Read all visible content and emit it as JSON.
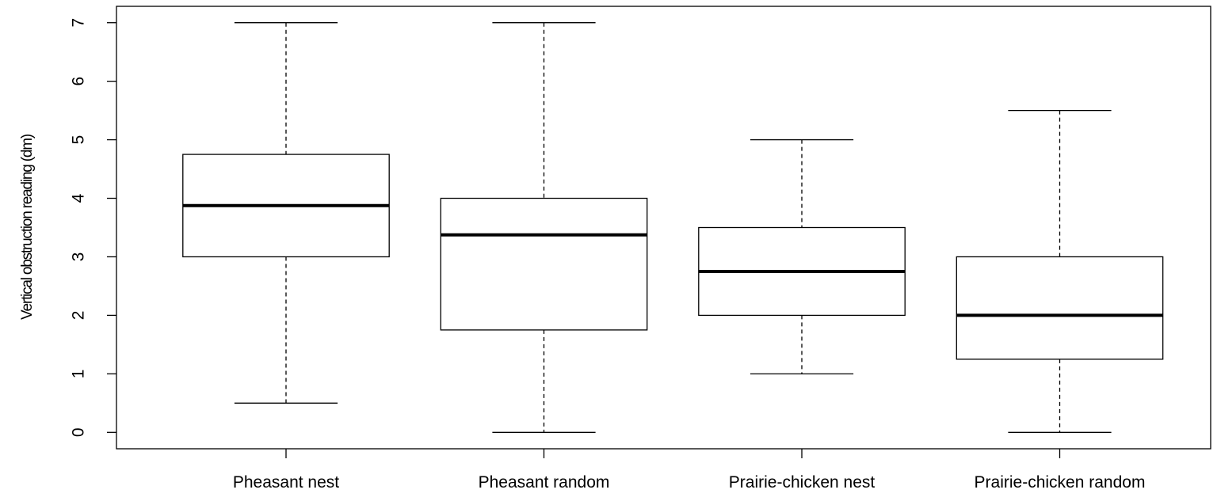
{
  "chart_data": {
    "type": "box",
    "y_label": "Vertical obstruction reading (dm)",
    "categories": [
      "Pheasant nest",
      "Pheasant random",
      "Prairie-chicken nest",
      "Prairie-chicken random"
    ],
    "boxes": [
      {
        "min": 0.5,
        "q1": 3,
        "median": 3.875,
        "q3": 4.75,
        "max": 7
      },
      {
        "min": 0,
        "q1": 1.75,
        "median": 3.375,
        "q3": 4,
        "max": 7
      },
      {
        "min": 1,
        "q1": 2,
        "median": 2.75,
        "q3": 3.5,
        "max": 5
      },
      {
        "min": 0,
        "q1": 1.25,
        "median": 2,
        "q3": 3,
        "max": 5.5
      }
    ],
    "ylim": [
      -0.28,
      7.28
    ],
    "yticks": [
      0,
      1,
      2,
      3,
      4,
      5,
      6,
      7
    ]
  }
}
